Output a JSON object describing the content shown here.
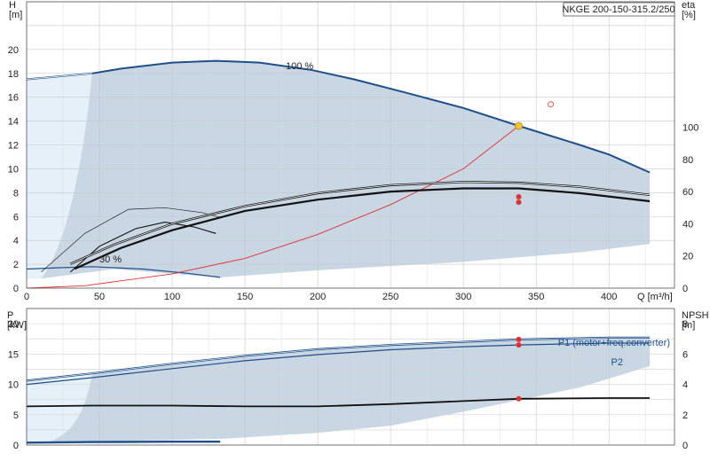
{
  "chart_data": [
    {
      "type": "line",
      "panel": "head-efficiency",
      "title": "NKGE 200-150-315.2/250",
      "xlabel": "Q [m³/h]",
      "ylabel": "H\n[m]",
      "y2label": "eta\n[%]",
      "xlim": [
        0,
        445
      ],
      "ylim": [
        0,
        24
      ],
      "y2lim": [
        0,
        178
      ],
      "x_ticks": [
        0,
        50,
        100,
        150,
        200,
        250,
        300,
        350,
        400
      ],
      "y_ticks": [
        0,
        2,
        4,
        6,
        8,
        10,
        12,
        14,
        16,
        18,
        20
      ],
      "y2_ticks": [
        0,
        20,
        40,
        60,
        80,
        100
      ],
      "grid": true,
      "colors": {
        "area_fill": "#c9d6e3",
        "light_fill": "#e6f0f8",
        "curve_blue": "#1f4f8a",
        "system_red": "#e03030",
        "point_orange": "#f2c23a",
        "black": "#111111"
      },
      "series": [
        {
          "name": "100 %",
          "role": "head_max",
          "points": [
            [
              0,
              17.5
            ],
            [
              45,
              18.0
            ],
            [
              65,
              18.4
            ],
            [
              100,
              18.9
            ],
            [
              130,
              19.05
            ],
            [
              160,
              18.9
            ],
            [
              195,
              18.3
            ],
            [
              225,
              17.5
            ],
            [
              260,
              16.4
            ],
            [
              300,
              15.1
            ],
            [
              338,
              13.6
            ],
            [
              380,
              12.0
            ],
            [
              400,
              11.2
            ],
            [
              428,
              9.7
            ]
          ]
        },
        {
          "name": "30 %",
          "role": "head_min",
          "points": [
            [
              0,
              1.6
            ],
            [
              20,
              1.7
            ],
            [
              45,
              1.8
            ],
            [
              80,
              1.6
            ],
            [
              110,
              1.25
            ],
            [
              133,
              0.9
            ]
          ]
        },
        {
          "name": "",
          "role": "system_curve",
          "points": [
            [
              0,
              0
            ],
            [
              40,
              0.2
            ],
            [
              100,
              1.2
            ],
            [
              150,
              2.5
            ],
            [
              200,
              4.5
            ],
            [
              250,
              7.0
            ],
            [
              300,
              10.0
            ],
            [
              338,
              13.6
            ]
          ]
        },
        {
          "name": "",
          "role": "efficiency_max",
          "points": [
            [
              30,
              15
            ],
            [
              60,
              27
            ],
            [
              100,
              40
            ],
            [
              150,
              51
            ],
            [
              200,
              59
            ],
            [
              250,
              64
            ],
            [
              300,
              66
            ],
            [
              338,
              65.5
            ],
            [
              380,
              63
            ],
            [
              428,
              58
            ]
          ]
        },
        {
          "name": "",
          "role": "efficiency_op",
          "points": [
            [
              33,
              12
            ],
            [
              65,
              25
            ],
            [
              100,
              36
            ],
            [
              150,
              48
            ],
            [
              200,
              55
            ],
            [
              250,
              60
            ],
            [
              300,
              62
            ],
            [
              338,
              62
            ],
            [
              380,
              59
            ],
            [
              428,
              54
            ]
          ]
        },
        {
          "name": "",
          "role": "efficiency_part1",
          "points": [
            [
              10,
              10
            ],
            [
              40,
              34
            ],
            [
              70,
              49
            ],
            [
              95,
              50
            ],
            [
              120,
              47
            ],
            [
              133,
              44
            ]
          ]
        },
        {
          "name": "",
          "role": "efficiency_part2",
          "points": [
            [
              30,
              10
            ],
            [
              50,
              26
            ],
            [
              75,
              37
            ],
            [
              95,
              41
            ],
            [
              115,
              38
            ],
            [
              130,
              34
            ]
          ]
        }
      ],
      "markers": [
        {
          "x": 338,
          "y": 13.6,
          "kind": "duty-point"
        },
        {
          "x": 338,
          "y": 7.65,
          "kind": "red-dot"
        },
        {
          "x": 338,
          "y": 7.2,
          "kind": "red-dot"
        },
        {
          "x": 360,
          "y": 15.4,
          "kind": "red-circle"
        }
      ]
    },
    {
      "type": "line",
      "panel": "power-npsh",
      "xlabel": "",
      "ylabel": "P\n[kW]",
      "y2label": "NPSH\n[m]",
      "xlim": [
        0,
        445
      ],
      "ylim": [
        0,
        22.5
      ],
      "y2lim": [
        0,
        9
      ],
      "y_ticks": [
        0,
        5,
        10,
        15,
        20
      ],
      "y2_ticks": [
        0,
        2,
        4,
        6,
        8
      ],
      "grid": true,
      "series": [
        {
          "name": "P1 (motor+freq.converter)",
          "points": [
            [
              0,
              10.6
            ],
            [
              45,
              11.8
            ],
            [
              100,
              13.4
            ],
            [
              150,
              14.7
            ],
            [
              200,
              15.8
            ],
            [
              250,
              16.5
            ],
            [
              300,
              17.0
            ],
            [
              338,
              17.4
            ],
            [
              400,
              17.7
            ],
            [
              428,
              17.7
            ]
          ]
        },
        {
          "name": "P2",
          "points": [
            [
              0,
              10.0
            ],
            [
              45,
              11.1
            ],
            [
              100,
              12.6
            ],
            [
              150,
              13.9
            ],
            [
              200,
              14.9
            ],
            [
              250,
              15.7
            ],
            [
              300,
              16.2
            ],
            [
              338,
              16.5
            ],
            [
              400,
              16.8
            ],
            [
              428,
              16.8
            ]
          ]
        },
        {
          "name": "",
          "role": "npsh",
          "points": [
            [
              0,
              2.55
            ],
            [
              45,
              2.6
            ],
            [
              100,
              2.6
            ],
            [
              150,
              2.55
            ],
            [
              200,
              2.55
            ],
            [
              250,
              2.7
            ],
            [
              300,
              2.9
            ],
            [
              338,
              3.05
            ],
            [
              400,
              3.1
            ],
            [
              428,
              3.1
            ]
          ]
        },
        {
          "name": "",
          "role": "power_min",
          "points": [
            [
              0,
              0.4
            ],
            [
              45,
              0.5
            ],
            [
              100,
              0.55
            ],
            [
              133,
              0.55
            ]
          ]
        }
      ],
      "markers": [
        {
          "x": 338,
          "y": 17.4,
          "kind": "red-dot"
        },
        {
          "x": 338,
          "y": 16.5,
          "kind": "red-dot"
        },
        {
          "x": 338,
          "y2": 3.05,
          "kind": "red-dot"
        }
      ]
    }
  ]
}
